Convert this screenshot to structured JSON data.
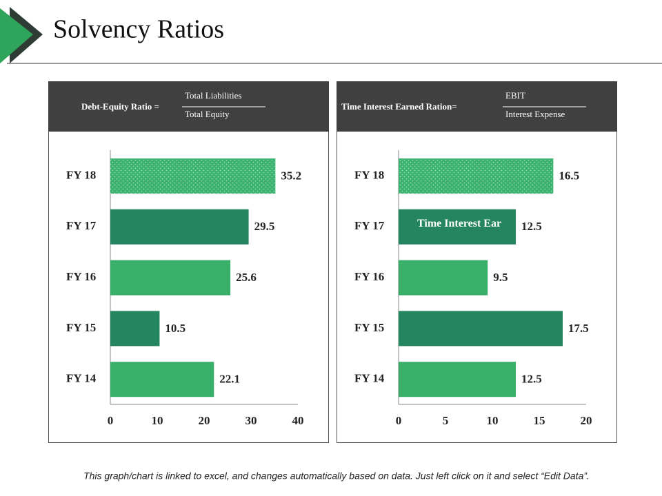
{
  "title": "Solvency Ratios",
  "footnote": "This graph/chart is linked to excel, and changes automatically based on data. Just left click on it and select “Edit Data”.",
  "chart_data": [
    {
      "type": "bar",
      "orientation": "horizontal",
      "formula": {
        "label": "Debt-Equity  Ratio =",
        "numerator": "Total Liabilities",
        "denominator": "Total Equity"
      },
      "categories": [
        "FY 18",
        "FY 17",
        "FY 16",
        "FY 15",
        "FY 14"
      ],
      "values": [
        35.2,
        29.5,
        25.6,
        10.5,
        22.1
      ],
      "colors": [
        "#3cb371",
        "#248560",
        "#3aaf6a",
        "#248560",
        "#3aaf6a"
      ],
      "pattern": "dots",
      "pattern_index": 0,
      "xlim": [
        0,
        40
      ],
      "xticks": [
        0,
        10,
        20,
        30,
        40
      ]
    },
    {
      "type": "bar",
      "orientation": "horizontal",
      "formula": {
        "label": "Time Interest Earned Ration=",
        "numerator": "EBIT",
        "denominator": "Interest Expense"
      },
      "categories": [
        "FY 18",
        "FY 17",
        "FY 16",
        "FY 15",
        "FY 14"
      ],
      "values": [
        16.5,
        12.5,
        9.5,
        17.5,
        12.5
      ],
      "colors": [
        "#3cb371",
        "#248560",
        "#3aaf6a",
        "#248560",
        "#3aaf6a"
      ],
      "pattern": "dots",
      "pattern_index": 0,
      "annotation": "Time Interest Ear",
      "xlim": [
        0,
        20
      ],
      "xticks": [
        0,
        5,
        10,
        15,
        20
      ]
    }
  ]
}
